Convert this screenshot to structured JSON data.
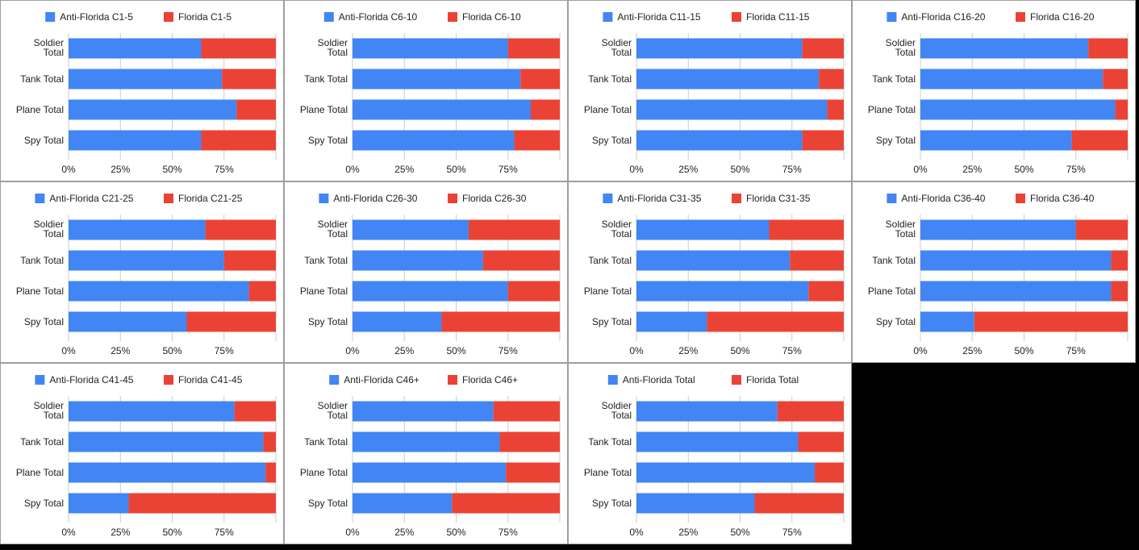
{
  "colors": {
    "anti_florida": "#4285f4",
    "florida": "#ea4335",
    "gridline": "#cccccc",
    "background": "#000000"
  },
  "chart_data": [
    {
      "type": "bar",
      "orientation": "horizontal",
      "stacked": "percent",
      "categories": [
        "Soldier Total",
        "Tank Total",
        "Plane Total",
        "Spy Total"
      ],
      "x_ticks": [
        "0%",
        "25%",
        "50%",
        "75%"
      ],
      "xlim": [
        0,
        100
      ],
      "legend": "top",
      "series": [
        {
          "name": "Anti-Florida C1-5",
          "values": [
            64,
            74,
            81,
            64
          ]
        },
        {
          "name": "Florida C1-5",
          "values": [
            36,
            26,
            19,
            36
          ]
        }
      ]
    },
    {
      "type": "bar",
      "orientation": "horizontal",
      "stacked": "percent",
      "categories": [
        "Soldier Total",
        "Tank Total",
        "Plane Total",
        "Spy Total"
      ],
      "x_ticks": [
        "0%",
        "25%",
        "50%",
        "75%"
      ],
      "xlim": [
        0,
        100
      ],
      "legend": "top",
      "series": [
        {
          "name": "Anti-Florida C6-10",
          "values": [
            75,
            81,
            86,
            78
          ]
        },
        {
          "name": "Florida C6-10",
          "values": [
            25,
            19,
            14,
            22
          ]
        }
      ]
    },
    {
      "type": "bar",
      "orientation": "horizontal",
      "stacked": "percent",
      "categories": [
        "Soldier Total",
        "Tank Total",
        "Plane Total",
        "Spy Total"
      ],
      "x_ticks": [
        "0%",
        "25%",
        "50%",
        "75%"
      ],
      "xlim": [
        0,
        100
      ],
      "legend": "top",
      "series": [
        {
          "name": "Anti-Florida C11-15",
          "values": [
            80,
            88,
            92,
            80
          ]
        },
        {
          "name": "Florida C11-15",
          "values": [
            20,
            12,
            8,
            20
          ]
        }
      ]
    },
    {
      "type": "bar",
      "orientation": "horizontal",
      "stacked": "percent",
      "categories": [
        "Soldier Total",
        "Tank Total",
        "Plane Total",
        "Spy Total"
      ],
      "x_ticks": [
        "0%",
        "25%",
        "50%",
        "75%"
      ],
      "xlim": [
        0,
        100
      ],
      "legend": "top",
      "series": [
        {
          "name": "Anti-Florida C16-20",
          "values": [
            81,
            88,
            94,
            73
          ]
        },
        {
          "name": "Florida C16-20",
          "values": [
            19,
            12,
            6,
            27
          ]
        }
      ]
    },
    {
      "type": "bar",
      "orientation": "horizontal",
      "stacked": "percent",
      "categories": [
        "Soldier Total",
        "Tank Total",
        "Plane Total",
        "Spy Total"
      ],
      "x_ticks": [
        "0%",
        "25%",
        "50%",
        "75%"
      ],
      "xlim": [
        0,
        100
      ],
      "legend": "top",
      "series": [
        {
          "name": "Anti-Florida C21-25",
          "values": [
            66,
            75,
            87,
            57
          ]
        },
        {
          "name": "Florida C21-25",
          "values": [
            34,
            25,
            13,
            43
          ]
        }
      ]
    },
    {
      "type": "bar",
      "orientation": "horizontal",
      "stacked": "percent",
      "categories": [
        "Soldier Total",
        "Tank Total",
        "Plane Total",
        "Spy Total"
      ],
      "x_ticks": [
        "0%",
        "25%",
        "50%",
        "75%"
      ],
      "xlim": [
        0,
        100
      ],
      "legend": "top",
      "series": [
        {
          "name": "Anti-Florida C26-30",
          "values": [
            56,
            63,
            75,
            43
          ]
        },
        {
          "name": "Florida C26-30",
          "values": [
            44,
            37,
            25,
            57
          ]
        }
      ]
    },
    {
      "type": "bar",
      "orientation": "horizontal",
      "stacked": "percent",
      "categories": [
        "Soldier Total",
        "Tank Total",
        "Plane Total",
        "Spy Total"
      ],
      "x_ticks": [
        "0%",
        "25%",
        "50%",
        "75%"
      ],
      "xlim": [
        0,
        100
      ],
      "legend": "top",
      "series": [
        {
          "name": "Anti-Florida C31-35",
          "values": [
            64,
            74,
            83,
            34
          ]
        },
        {
          "name": "Florida C31-35",
          "values": [
            36,
            26,
            17,
            66
          ]
        }
      ]
    },
    {
      "type": "bar",
      "orientation": "horizontal",
      "stacked": "percent",
      "categories": [
        "Soldier Total",
        "Tank Total",
        "Plane Total",
        "Spy Total"
      ],
      "x_ticks": [
        "0%",
        "25%",
        "50%",
        "75%"
      ],
      "xlim": [
        0,
        100
      ],
      "legend": "top",
      "series": [
        {
          "name": "Anti-Florida C36-40",
          "values": [
            75,
            92,
            92,
            26
          ]
        },
        {
          "name": "Florida C36-40",
          "values": [
            25,
            8,
            8,
            74
          ]
        }
      ]
    },
    {
      "type": "bar",
      "orientation": "horizontal",
      "stacked": "percent",
      "categories": [
        "Soldier Total",
        "Tank Total",
        "Plane Total",
        "Spy Total"
      ],
      "x_ticks": [
        "0%",
        "25%",
        "50%",
        "75%"
      ],
      "xlim": [
        0,
        100
      ],
      "legend": "top",
      "series": [
        {
          "name": "Anti-Florida C41-45",
          "values": [
            80,
            94,
            95,
            29
          ]
        },
        {
          "name": "Florida C41-45",
          "values": [
            20,
            6,
            5,
            71
          ]
        }
      ]
    },
    {
      "type": "bar",
      "orientation": "horizontal",
      "stacked": "percent",
      "categories": [
        "Soldier Total",
        "Tank Total",
        "Plane Total",
        "Spy Total"
      ],
      "x_ticks": [
        "0%",
        "25%",
        "50%",
        "75%"
      ],
      "xlim": [
        0,
        100
      ],
      "legend": "top",
      "series": [
        {
          "name": "Anti-Florida C46+",
          "values": [
            68,
            71,
            74,
            48
          ]
        },
        {
          "name": "Florida C46+",
          "values": [
            32,
            29,
            26,
            52
          ]
        }
      ]
    },
    {
      "type": "bar",
      "orientation": "horizontal",
      "stacked": "percent",
      "categories": [
        "Soldier Total",
        "Tank Total",
        "Plane Total",
        "Spy Total"
      ],
      "x_ticks": [
        "0%",
        "25%",
        "50%",
        "75%"
      ],
      "xlim": [
        0,
        100
      ],
      "legend": "top",
      "series": [
        {
          "name": "Anti-Florida Total",
          "values": [
            68,
            78,
            86,
            57
          ]
        },
        {
          "name": "Florida Total",
          "values": [
            32,
            22,
            14,
            43
          ]
        }
      ]
    }
  ]
}
